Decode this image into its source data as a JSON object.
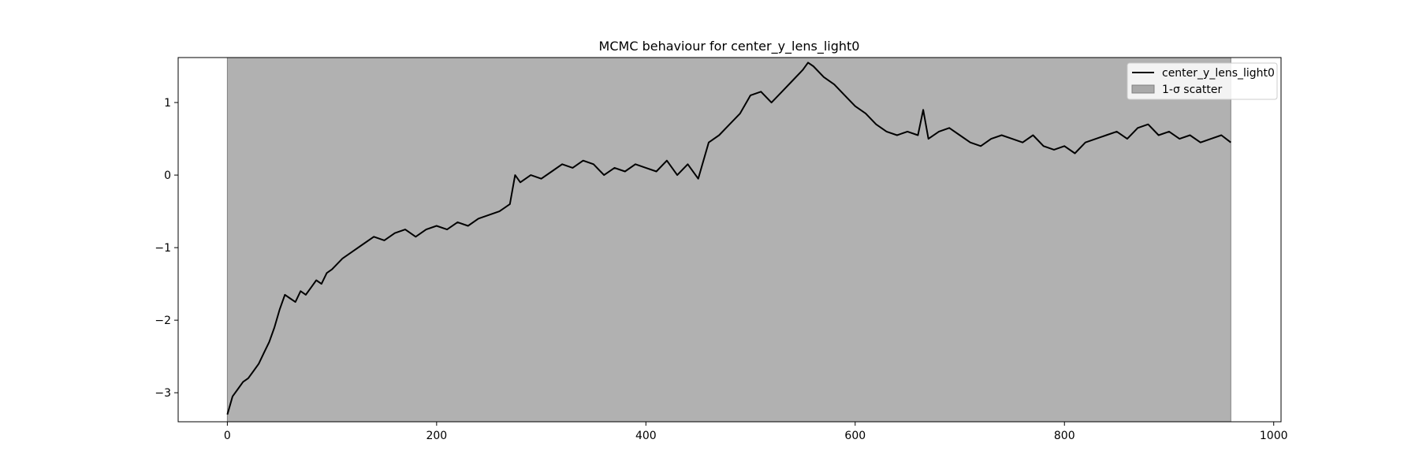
{
  "chart_data": {
    "type": "line",
    "title": "MCMC behaviour for center_y_lens_light0",
    "xlabel": "",
    "ylabel": "",
    "xlim": [
      -47,
      1007
    ],
    "ylim": [
      -3.4,
      1.62
    ],
    "x_ticks": [
      0,
      200,
      400,
      600,
      800,
      1000
    ],
    "x_tick_labels": [
      "0",
      "200",
      "400",
      "600",
      "800",
      "1000"
    ],
    "y_ticks": [
      -3,
      -2,
      -1,
      0,
      1
    ],
    "y_tick_labels": [
      "−3",
      "−2",
      "−1",
      "0",
      "1"
    ],
    "grid": false,
    "legend": {
      "placement": "top-right",
      "entries": [
        {
          "label": "center_y_lens_light0",
          "kind": "line",
          "color": "#000000"
        },
        {
          "label": "1-σ scatter",
          "kind": "patch",
          "color": "#a9a9a9"
        }
      ]
    },
    "series": [
      {
        "name": "center_y_lens_light0",
        "color": "#000000",
        "x": [
          0,
          5,
          10,
          15,
          20,
          25,
          30,
          35,
          40,
          45,
          50,
          55,
          60,
          65,
          70,
          75,
          80,
          85,
          90,
          95,
          100,
          110,
          120,
          130,
          140,
          150,
          160,
          170,
          180,
          190,
          200,
          210,
          220,
          230,
          240,
          250,
          260,
          270,
          275,
          280,
          290,
          300,
          310,
          320,
          330,
          340,
          350,
          360,
          370,
          380,
          390,
          400,
          410,
          420,
          430,
          440,
          450,
          460,
          470,
          480,
          490,
          500,
          510,
          520,
          530,
          540,
          550,
          555,
          560,
          570,
          580,
          590,
          600,
          610,
          620,
          630,
          640,
          650,
          660,
          665,
          670,
          680,
          690,
          700,
          710,
          720,
          730,
          740,
          750,
          760,
          770,
          780,
          790,
          800,
          810,
          820,
          830,
          840,
          850,
          860,
          870,
          880,
          890,
          900,
          910,
          920,
          930,
          940,
          950,
          959
        ],
        "y": [
          -3.3,
          -3.05,
          -2.95,
          -2.85,
          -2.8,
          -2.7,
          -2.6,
          -2.45,
          -2.3,
          -2.1,
          -1.85,
          -1.65,
          -1.7,
          -1.75,
          -1.6,
          -1.65,
          -1.55,
          -1.45,
          -1.5,
          -1.35,
          -1.3,
          -1.15,
          -1.05,
          -0.95,
          -0.85,
          -0.9,
          -0.8,
          -0.75,
          -0.85,
          -0.75,
          -0.7,
          -0.75,
          -0.65,
          -0.7,
          -0.6,
          -0.55,
          -0.5,
          -0.4,
          0.0,
          -0.1,
          0.0,
          -0.05,
          0.05,
          0.15,
          0.1,
          0.2,
          0.15,
          0.0,
          0.1,
          0.05,
          0.15,
          0.1,
          0.05,
          0.2,
          0.0,
          0.15,
          -0.05,
          0.45,
          0.55,
          0.7,
          0.85,
          1.1,
          1.15,
          1.0,
          1.15,
          1.3,
          1.45,
          1.55,
          1.5,
          1.35,
          1.25,
          1.1,
          0.95,
          0.85,
          0.7,
          0.6,
          0.55,
          0.6,
          0.55,
          0.9,
          0.5,
          0.6,
          0.65,
          0.55,
          0.45,
          0.4,
          0.5,
          0.55,
          0.5,
          0.45,
          0.55,
          0.4,
          0.35,
          0.4,
          0.3,
          0.45,
          0.5,
          0.55,
          0.6,
          0.5,
          0.65,
          0.7,
          0.55,
          0.6,
          0.5,
          0.55,
          0.45,
          0.5,
          0.55,
          0.45
        ]
      }
    ],
    "scatter_band": {
      "name": "1-σ scatter",
      "x": [
        0,
        959
      ],
      "y_low": -3.4,
      "y_high": 1.62,
      "color": "#a9a9a9",
      "alpha": 0.9
    }
  }
}
